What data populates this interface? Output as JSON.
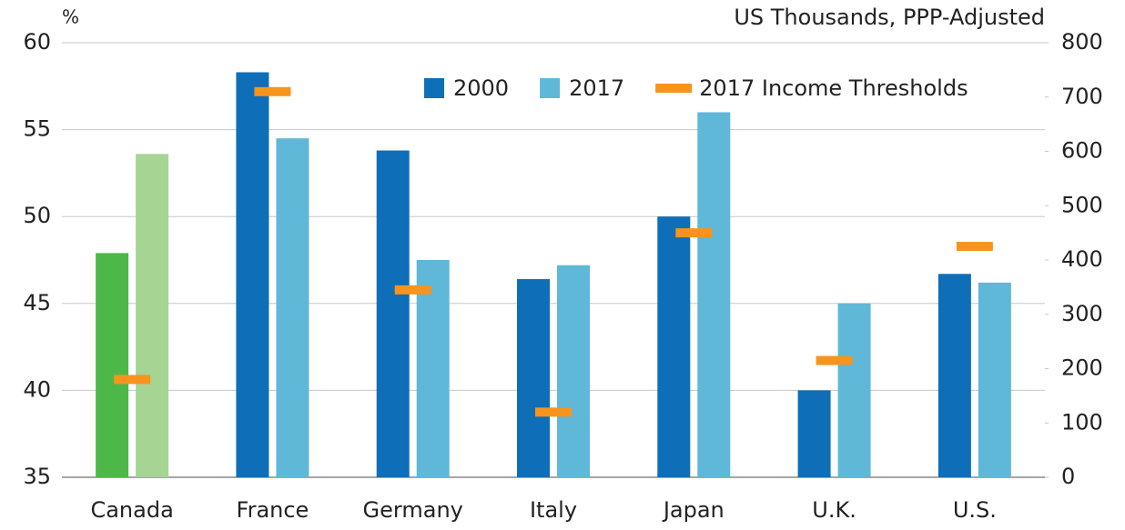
{
  "chart_data": {
    "type": "bar",
    "y_label": "%",
    "y2_label": "US Thousands, PPP-Adjusted",
    "categories": [
      "Canada",
      "France",
      "Germany",
      "Italy",
      "Japan",
      "U.K.",
      "U.S."
    ],
    "series": [
      {
        "name": "2000",
        "color": "#0e6eb8",
        "colors": [
          "#4db848",
          "#0e6eb8",
          "#0e6eb8",
          "#0e6eb8",
          "#0e6eb8",
          "#0e6eb8",
          "#0e6eb8"
        ],
        "values": [
          47.9,
          58.3,
          53.8,
          46.4,
          50.0,
          40.0,
          46.7
        ]
      },
      {
        "name": "2017",
        "color": "#5fb8d8",
        "colors": [
          "#a6d492",
          "#5fb8d8",
          "#5fb8d8",
          "#5fb8d8",
          "#5fb8d8",
          "#5fb8d8",
          "#5fb8d8"
        ],
        "values": [
          53.6,
          54.5,
          47.5,
          47.2,
          56.0,
          45.0,
          46.2
        ]
      },
      {
        "name": "2017 Income Thresholds",
        "color": "#f7941d",
        "type": "marker",
        "axis": "y2",
        "values": [
          180,
          710,
          345,
          120,
          450,
          215,
          425
        ]
      }
    ],
    "ylim": [
      35,
      60
    ],
    "yticks": [
      35,
      40,
      45,
      50,
      55,
      60
    ],
    "y2lim": [
      0,
      800
    ],
    "y2ticks": [
      0,
      100,
      200,
      300,
      400,
      500,
      600,
      700,
      800
    ],
    "grid": true,
    "legend": "top-right"
  }
}
